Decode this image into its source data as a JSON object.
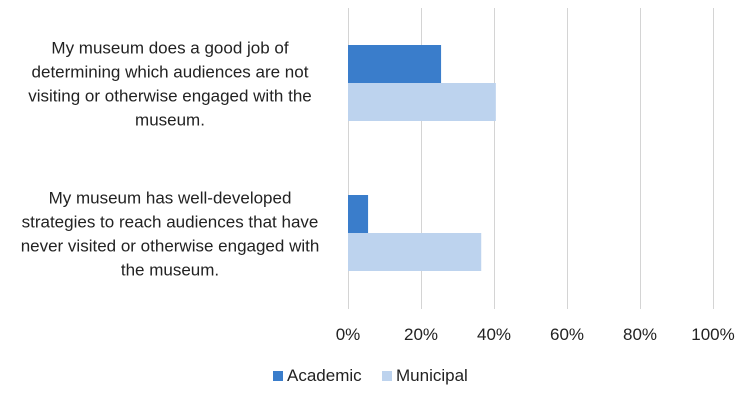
{
  "chart_data": {
    "type": "bar",
    "orientation": "horizontal",
    "title": "",
    "xlabel": "",
    "ylabel": "",
    "categories": [
      "My museum does a good job of determining which audiences are not visiting or otherwise engaged with the museum.",
      "My museum has well-developed strategies to reach audiences that have never visited or otherwise engaged with the museum."
    ],
    "category_lines": [
      [
        "My museum does a good job of",
        "determining which audiences are not",
        "visiting or otherwise engaged with the",
        "museum."
      ],
      [
        "My museum has well-developed",
        "strategies to reach audiences that have",
        "never visited or otherwise engaged with",
        "the museum."
      ]
    ],
    "series": [
      {
        "name": "Academic",
        "color": "#3A7DCB",
        "values": [
          25.5,
          5.5
        ]
      },
      {
        "name": "Municipal",
        "color": "#BDD3EE",
        "values": [
          40.5,
          36.5
        ]
      }
    ],
    "xlim": [
      0,
      100
    ],
    "x_ticks": [
      0,
      20,
      40,
      60,
      80,
      100
    ],
    "x_tick_labels": [
      "0%",
      "20%",
      "40%",
      "60%",
      "80%",
      "100%"
    ],
    "grid": true,
    "legend_position": "bottom"
  }
}
